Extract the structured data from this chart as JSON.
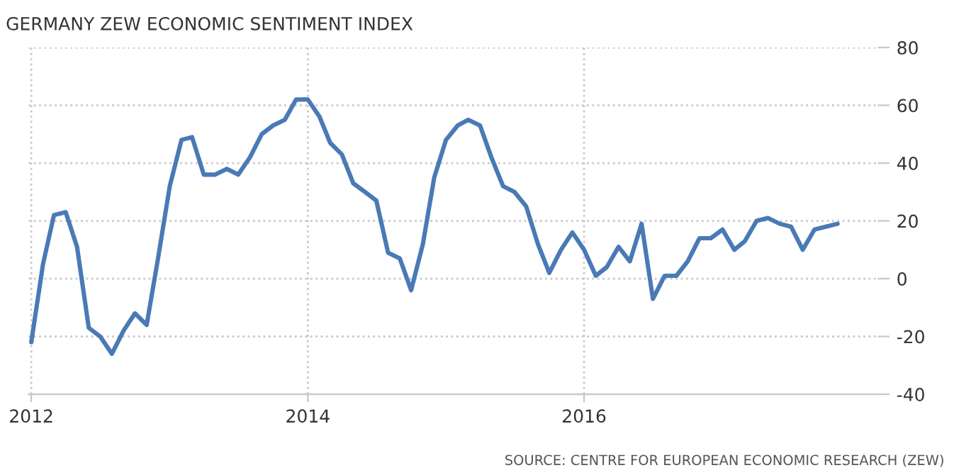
{
  "chart_data": {
    "type": "line",
    "title": "GERMANY ZEW ECONOMIC SENTIMENT INDEX",
    "annotations": [
      "SOURCE: CENTRE FOR EUROPEAN ECONOMIC RESEARCH (ZEW)"
    ],
    "x": [
      "2012-01",
      "2012-02",
      "2012-03",
      "2012-04",
      "2012-05",
      "2012-06",
      "2012-07",
      "2012-08",
      "2012-09",
      "2012-10",
      "2012-11",
      "2012-12",
      "2013-01",
      "2013-02",
      "2013-03",
      "2013-04",
      "2013-05",
      "2013-06",
      "2013-07",
      "2013-08",
      "2013-09",
      "2013-10",
      "2013-11",
      "2013-12",
      "2014-01",
      "2014-02",
      "2014-03",
      "2014-04",
      "2014-05",
      "2014-06",
      "2014-07",
      "2014-08",
      "2014-09",
      "2014-10",
      "2014-11",
      "2014-12",
      "2015-01",
      "2015-02",
      "2015-03",
      "2015-04",
      "2015-05",
      "2015-06",
      "2015-07",
      "2015-08",
      "2015-09",
      "2015-10",
      "2015-11",
      "2015-12",
      "2016-01",
      "2016-02",
      "2016-03",
      "2016-04",
      "2016-05",
      "2016-06",
      "2016-07",
      "2016-08",
      "2016-09",
      "2016-10",
      "2016-11",
      "2016-12",
      "2017-01",
      "2017-02",
      "2017-03",
      "2017-04",
      "2017-05",
      "2017-06",
      "2017-07",
      "2017-08",
      "2017-09",
      "2017-10",
      "2017-11"
    ],
    "series": [
      {
        "color": "#4a7ab5",
        "values": [
          -22,
          5,
          22,
          23,
          11,
          -17,
          -20,
          -26,
          -18,
          -12,
          -16,
          7,
          32,
          48,
          49,
          36,
          36,
          38,
          36,
          42,
          50,
          53,
          55,
          62,
          62,
          56,
          47,
          43,
          33,
          30,
          27,
          9,
          7,
          -4,
          12,
          35,
          48,
          53,
          55,
          53,
          42,
          32,
          30,
          25,
          12,
          2,
          10,
          16,
          10,
          1,
          4,
          11,
          6,
          19,
          -7,
          1,
          1,
          6,
          14,
          14,
          17,
          10,
          13,
          20,
          21,
          19,
          18,
          10,
          17,
          18,
          19
        ]
      }
    ],
    "xlim": [
      "2011-12-25",
      "2018-02-15"
    ],
    "xticks": [
      "2012",
      "2014",
      "2016"
    ],
    "ylim": [
      -40,
      80
    ],
    "yticks": [
      -40,
      -20,
      0,
      20,
      40,
      60,
      80
    ],
    "grid": true,
    "marker": "none",
    "line_style": "solid",
    "legend": false
  }
}
